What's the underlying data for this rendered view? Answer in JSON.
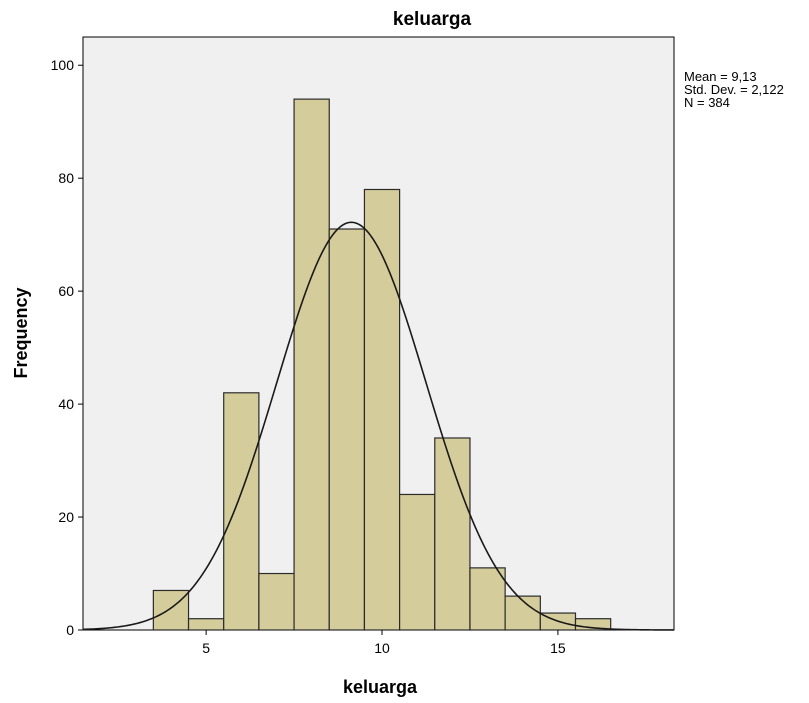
{
  "chart_data": {
    "type": "bar",
    "title": "keluarga",
    "xlabel": "keluarga",
    "ylabel": "Frequency",
    "xlim": [
      1.5,
      18.3
    ],
    "ylim": [
      0,
      105
    ],
    "x_ticks": [
      5,
      10,
      15
    ],
    "y_ticks": [
      0,
      20,
      40,
      60,
      80,
      100
    ],
    "bin_width": 1,
    "bins": [
      {
        "x": 4,
        "value": 7
      },
      {
        "x": 5,
        "value": 2
      },
      {
        "x": 6,
        "value": 42
      },
      {
        "x": 7,
        "value": 10
      },
      {
        "x": 8,
        "value": 94
      },
      {
        "x": 9,
        "value": 71
      },
      {
        "x": 10,
        "value": 78
      },
      {
        "x": 11,
        "value": 24
      },
      {
        "x": 12,
        "value": 34
      },
      {
        "x": 13,
        "value": 11
      },
      {
        "x": 14,
        "value": 6
      },
      {
        "x": 15,
        "value": 3
      },
      {
        "x": 16,
        "value": 2
      }
    ],
    "normal_curve": {
      "mean": 9.13,
      "std_dev": 2.122,
      "n": 384
    },
    "stats_box": [
      "Mean = 9,13",
      "Std. Dev. = 2,122",
      "N = 384"
    ],
    "grid": false,
    "colors": {
      "bar_fill": "#d4cc9a",
      "bar_stroke": "#2b2b2b",
      "plot_bg": "#f0f0f0",
      "curve": "#1a1a1a"
    }
  }
}
